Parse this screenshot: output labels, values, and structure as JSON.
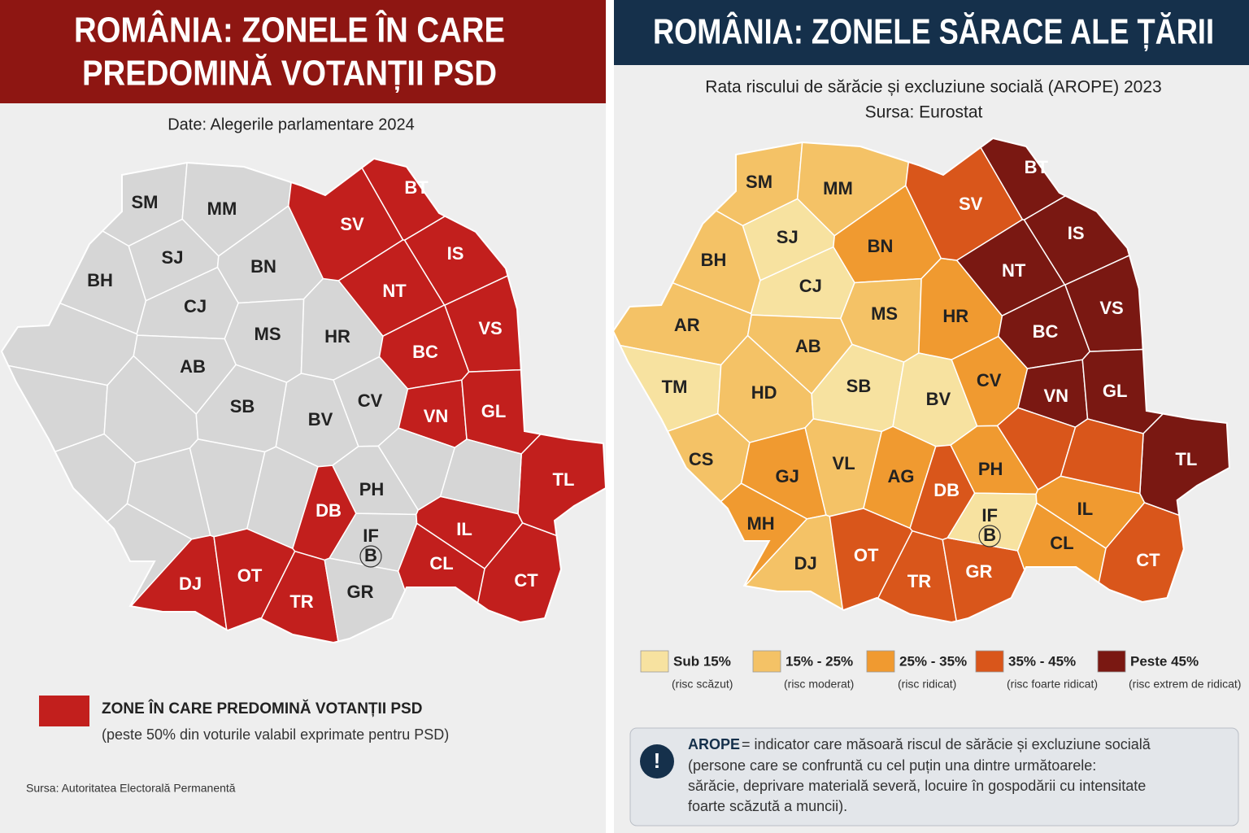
{
  "left_map": {
    "title": [
      "ROMÂNIA: ZONELE ÎN CARE",
      "PREDOMINĂ VOTANȚII PSD"
    ],
    "subtitle": "Date: Alegerile parlamentare 2024",
    "psd_color": "#c21f1d",
    "other_color": "#d6d6d6",
    "counties": [
      {
        "code": "SM",
        "psd": false
      },
      {
        "code": "MM",
        "psd": false
      },
      {
        "code": "SJ",
        "psd": false
      },
      {
        "code": "BN",
        "psd": false
      },
      {
        "code": "BH",
        "psd": false
      },
      {
        "code": "CJ",
        "psd": false
      },
      {
        "code": null,
        "psd": false
      },
      {
        "code": "MS",
        "psd": false
      },
      {
        "code": "HR",
        "psd": false
      },
      {
        "code": "AB",
        "psd": false
      },
      {
        "code": null,
        "psd": false
      },
      {
        "code": null,
        "psd": false
      },
      {
        "code": "SB",
        "psd": false
      },
      {
        "code": "BV",
        "psd": false
      },
      {
        "code": "CV",
        "psd": false
      },
      {
        "code": null,
        "psd": false
      },
      {
        "code": null,
        "psd": false
      },
      {
        "code": null,
        "psd": false
      },
      {
        "code": null,
        "psd": false
      },
      {
        "code": "DB",
        "psd": true
      },
      {
        "code": "PH",
        "psd": false
      },
      {
        "code": null,
        "psd": false
      },
      {
        "code": "DJ",
        "psd": true
      },
      {
        "code": "OT",
        "psd": true
      },
      {
        "code": "TR",
        "psd": true
      },
      {
        "code": "GR",
        "psd": false
      },
      {
        "code": "IF",
        "psd": false
      },
      {
        "code": "IL",
        "psd": true
      },
      {
        "code": "CL",
        "psd": true
      },
      {
        "code": "CT",
        "psd": true
      },
      {
        "code": "BT",
        "psd": true
      },
      {
        "code": "SV",
        "psd": true
      },
      {
        "code": "IS",
        "psd": true
      },
      {
        "code": "NT",
        "psd": true
      },
      {
        "code": "BC",
        "psd": true
      },
      {
        "code": "VS",
        "psd": true
      },
      {
        "code": "VN",
        "psd": true
      },
      {
        "code": "GL",
        "psd": true
      },
      {
        "code": "TL",
        "psd": true
      },
      {
        "code": null,
        "psd": false
      },
      {
        "code": null,
        "psd": false
      },
      {
        "code": "B",
        "psd": false
      }
    ],
    "legend": {
      "label": "ZONE ÎN CARE PREDOMINĂ VOTANȚII PSD",
      "note": "(peste 50% din voturile valabil exprimate pentru PSD)"
    },
    "source": "Sursa: Autoritatea Electorală Permanentă"
  },
  "right_map": {
    "title": "ROMÂNIA: ZONELE SĂRACE ALE ȚĂRII",
    "subtitle": [
      "Rata riscului de sărăcie și excluziune socială (AROPE) 2023",
      "Sursa: Eurostat"
    ],
    "legend": [
      {
        "label": "Sub 15%",
        "note": "(risc scăzut)",
        "color": "#f7e2a0"
      },
      {
        "label": "15% - 25%",
        "note": "(risc moderat)",
        "color": "#f4c266"
      },
      {
        "label": "25% - 35%",
        "note": "(risc ridicat)",
        "color": "#f09a30"
      },
      {
        "label": "35% - 45%",
        "note": "(risc foarte ridicat)",
        "color": "#d9561b"
      },
      {
        "label": "Peste 45%",
        "note": "(risc extrem de ridicat)",
        "color": "#7a1812"
      }
    ],
    "counties": [
      {
        "code": "SM",
        "risk": 1
      },
      {
        "code": "MM",
        "risk": 1
      },
      {
        "code": "SJ",
        "risk": 0
      },
      {
        "code": "BN",
        "risk": 2
      },
      {
        "code": "BH",
        "risk": 1
      },
      {
        "code": "CJ",
        "risk": 0
      },
      {
        "code": "AR",
        "risk": 1
      },
      {
        "code": "MS",
        "risk": 1
      },
      {
        "code": "HR",
        "risk": 2
      },
      {
        "code": "AB",
        "risk": 1
      },
      {
        "code": "TM",
        "risk": 0
      },
      {
        "code": "HD",
        "risk": 1
      },
      {
        "code": "SB",
        "risk": 0
      },
      {
        "code": "BV",
        "risk": 0
      },
      {
        "code": "CV",
        "risk": 2
      },
      {
        "code": "CS",
        "risk": 1
      },
      {
        "code": "GJ",
        "risk": 2
      },
      {
        "code": "VL",
        "risk": 1
      },
      {
        "code": "AG",
        "risk": 2
      },
      {
        "code": "DB",
        "risk": 3
      },
      {
        "code": "PH",
        "risk": 2
      },
      {
        "code": "MH",
        "risk": 2
      },
      {
        "code": "DJ",
        "risk": 1
      },
      {
        "code": "OT",
        "risk": 3
      },
      {
        "code": "TR",
        "risk": 3
      },
      {
        "code": "GR",
        "risk": 3
      },
      {
        "code": "IF",
        "risk": 0
      },
      {
        "code": "IL",
        "risk": 2
      },
      {
        "code": "CL",
        "risk": 2
      },
      {
        "code": "CT",
        "risk": 3
      },
      {
        "code": "BT",
        "risk": 4
      },
      {
        "code": "SV",
        "risk": 3
      },
      {
        "code": "IS",
        "risk": 4
      },
      {
        "code": "NT",
        "risk": 4
      },
      {
        "code": "BC",
        "risk": 4
      },
      {
        "code": "VS",
        "risk": 4
      },
      {
        "code": "VN",
        "risk": 4
      },
      {
        "code": "GL",
        "risk": 4
      },
      {
        "code": "TL",
        "risk": 4
      },
      {
        "code": null,
        "risk": 3
      },
      {
        "code": null,
        "risk": 3
      },
      {
        "code": "B",
        "risk": 0
      }
    ],
    "note": {
      "term": "AROPE",
      "lines": [
        "= indicator care măsoară riscul de sărăcie și excluziune socială",
        "(persone care se confruntă cu cel puțin una dintre următoarele:",
        "sărăcie, deprivare materială severă, locuire în gospodării cu intensitate",
        "foarte scăzută a muncii)."
      ]
    }
  }
}
